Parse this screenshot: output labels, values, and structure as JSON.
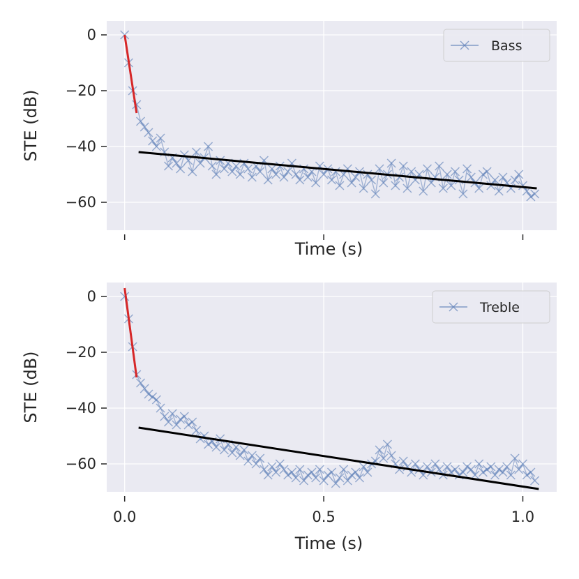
{
  "colors": {
    "background": "#eaeaf2",
    "grid": "#ffffff",
    "marker": "#4c72b0",
    "early_fit": "#d62728",
    "late_fit": "#000000",
    "text": "#262626"
  },
  "chart_data": [
    {
      "type": "line",
      "title": "",
      "xlabel": "Time (s)",
      "ylabel": "STE (dB)",
      "xlim": [
        -0.045,
        1.085
      ],
      "ylim": [
        -70,
        5
      ],
      "xticks": [
        0.0,
        0.5,
        1.0
      ],
      "xtick_labels": [
        "",
        "",
        ""
      ],
      "yticks": [
        0,
        -20,
        -40,
        -60
      ],
      "ytick_labels": [
        "0",
        "−20",
        "−40",
        "−60"
      ],
      "grid": true,
      "legend": {
        "position": "top-right",
        "entries": [
          "Bass"
        ]
      },
      "series": [
        {
          "name": "Bass",
          "style": "line-x-markers",
          "x": [
            0.0,
            0.01,
            0.02,
            0.03,
            0.04,
            0.05,
            0.06,
            0.07,
            0.08,
            0.09,
            0.1,
            0.11,
            0.12,
            0.13,
            0.14,
            0.15,
            0.16,
            0.17,
            0.18,
            0.19,
            0.2,
            0.21,
            0.22,
            0.23,
            0.24,
            0.25,
            0.26,
            0.27,
            0.28,
            0.29,
            0.3,
            0.31,
            0.32,
            0.33,
            0.34,
            0.35,
            0.36,
            0.37,
            0.38,
            0.39,
            0.4,
            0.41,
            0.42,
            0.43,
            0.44,
            0.45,
            0.46,
            0.47,
            0.48,
            0.49,
            0.5,
            0.51,
            0.52,
            0.53,
            0.54,
            0.55,
            0.56,
            0.57,
            0.58,
            0.59,
            0.6,
            0.61,
            0.62,
            0.63,
            0.64,
            0.65,
            0.66,
            0.67,
            0.68,
            0.69,
            0.7,
            0.71,
            0.72,
            0.73,
            0.74,
            0.75,
            0.76,
            0.77,
            0.78,
            0.79,
            0.8,
            0.81,
            0.82,
            0.83,
            0.84,
            0.85,
            0.86,
            0.87,
            0.88,
            0.89,
            0.9,
            0.91,
            0.92,
            0.93,
            0.94,
            0.95,
            0.96,
            0.97,
            0.98,
            0.99,
            1.0,
            1.01,
            1.02,
            1.03
          ],
          "y": [
            0,
            -10,
            -20,
            -25,
            -31,
            -33,
            -35,
            -38,
            -40,
            -37,
            -42,
            -47,
            -44,
            -46,
            -48,
            -43,
            -45,
            -49,
            -42,
            -46,
            -44,
            -40,
            -47,
            -50,
            -45,
            -48,
            -46,
            -49,
            -47,
            -50,
            -46,
            -48,
            -51,
            -47,
            -49,
            -45,
            -52,
            -48,
            -50,
            -47,
            -51,
            -49,
            -46,
            -50,
            -52,
            -48,
            -51,
            -49,
            -53,
            -47,
            -50,
            -48,
            -52,
            -49,
            -54,
            -50,
            -48,
            -53,
            -51,
            -49,
            -55,
            -50,
            -52,
            -57,
            -48,
            -53,
            -50,
            -46,
            -54,
            -51,
            -47,
            -55,
            -49,
            -52,
            -50,
            -56,
            -48,
            -53,
            -51,
            -47,
            -55,
            -50,
            -54,
            -49,
            -52,
            -57,
            -48,
            -51,
            -53,
            -55,
            -50,
            -49,
            -54,
            -52,
            -56,
            -51,
            -53,
            -55,
            -52,
            -50,
            -54,
            -56,
            -58,
            -57
          ]
        },
        {
          "name": "Early decay fit",
          "style": "line",
          "x": [
            0.0,
            0.03
          ],
          "y": [
            0,
            -28
          ]
        },
        {
          "name": "Late decay fit",
          "style": "line",
          "x": [
            0.035,
            1.035
          ],
          "y": [
            -42,
            -55
          ]
        }
      ]
    },
    {
      "type": "line",
      "title": "",
      "xlabel": "Time (s)",
      "ylabel": "STE (dB)",
      "xlim": [
        -0.045,
        1.085
      ],
      "ylim": [
        -70,
        5
      ],
      "xticks": [
        0.0,
        0.5,
        1.0
      ],
      "xtick_labels": [
        "0.0",
        "0.5",
        "1.0"
      ],
      "yticks": [
        0,
        -20,
        -40,
        -60
      ],
      "ytick_labels": [
        "0",
        "−20",
        "−40",
        "−60"
      ],
      "grid": true,
      "legend": {
        "position": "top-right",
        "entries": [
          "Treble"
        ]
      },
      "series": [
        {
          "name": "Treble",
          "style": "line-x-markers",
          "x": [
            0.0,
            0.01,
            0.02,
            0.03,
            0.04,
            0.05,
            0.06,
            0.07,
            0.08,
            0.09,
            0.1,
            0.11,
            0.12,
            0.13,
            0.14,
            0.15,
            0.16,
            0.17,
            0.18,
            0.19,
            0.2,
            0.21,
            0.22,
            0.23,
            0.24,
            0.25,
            0.26,
            0.27,
            0.28,
            0.29,
            0.3,
            0.31,
            0.32,
            0.33,
            0.34,
            0.35,
            0.36,
            0.37,
            0.38,
            0.39,
            0.4,
            0.41,
            0.42,
            0.43,
            0.44,
            0.45,
            0.46,
            0.47,
            0.48,
            0.49,
            0.5,
            0.51,
            0.52,
            0.53,
            0.54,
            0.55,
            0.56,
            0.57,
            0.58,
            0.59,
            0.6,
            0.61,
            0.62,
            0.63,
            0.64,
            0.65,
            0.66,
            0.67,
            0.68,
            0.69,
            0.7,
            0.71,
            0.72,
            0.73,
            0.74,
            0.75,
            0.76,
            0.77,
            0.78,
            0.79,
            0.8,
            0.81,
            0.82,
            0.83,
            0.84,
            0.85,
            0.86,
            0.87,
            0.88,
            0.89,
            0.9,
            0.91,
            0.92,
            0.93,
            0.94,
            0.95,
            0.96,
            0.97,
            0.98,
            0.99,
            1.0,
            1.01,
            1.02,
            1.03
          ],
          "y": [
            0,
            -8,
            -18,
            -28,
            -31,
            -33,
            -35,
            -36,
            -37,
            -40,
            -43,
            -45,
            -42,
            -46,
            -44,
            -43,
            -46,
            -45,
            -48,
            -51,
            -50,
            -53,
            -52,
            -54,
            -51,
            -55,
            -53,
            -56,
            -54,
            -57,
            -55,
            -59,
            -57,
            -60,
            -58,
            -62,
            -64,
            -61,
            -63,
            -60,
            -62,
            -64,
            -63,
            -65,
            -62,
            -66,
            -64,
            -63,
            -65,
            -62,
            -66,
            -64,
            -63,
            -67,
            -65,
            -62,
            -66,
            -64,
            -63,
            -65,
            -61,
            -63,
            -60,
            -59,
            -55,
            -58,
            -53,
            -57,
            -60,
            -62,
            -59,
            -61,
            -63,
            -60,
            -62,
            -64,
            -61,
            -63,
            -60,
            -62,
            -64,
            -61,
            -63,
            -62,
            -64,
            -63,
            -61,
            -62,
            -64,
            -60,
            -63,
            -62,
            -61,
            -64,
            -62,
            -63,
            -61,
            -64,
            -58,
            -62,
            -60,
            -64,
            -63,
            -66
          ]
        },
        {
          "name": "Early decay fit",
          "style": "line",
          "x": [
            0.0,
            0.03
          ],
          "y": [
            3,
            -29
          ]
        },
        {
          "name": "Late decay fit",
          "style": "line",
          "x": [
            0.035,
            1.04
          ],
          "y": [
            -47,
            -69
          ]
        }
      ]
    }
  ]
}
